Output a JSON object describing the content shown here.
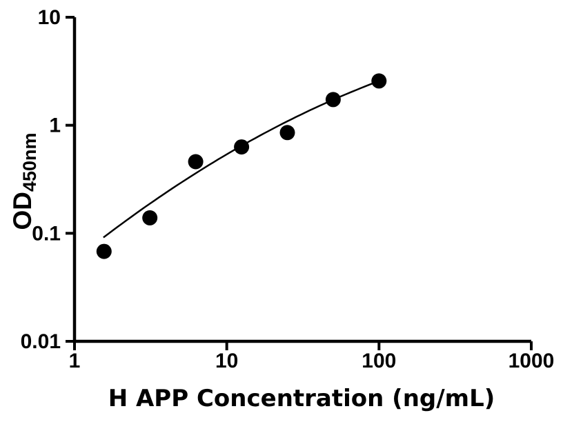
{
  "chart_data": {
    "type": "scatter",
    "title": "",
    "xlabel": "H APP Concentration (ng/mL)",
    "ylabel_main": "OD",
    "ylabel_sub": "450nm",
    "x_scale": "log",
    "y_scale": "log",
    "xlim": [
      1,
      1000
    ],
    "ylim": [
      0.01,
      10
    ],
    "x_ticks": {
      "values": [
        1,
        10,
        100,
        1000
      ],
      "labels": [
        "1",
        "10",
        "100",
        "1000"
      ]
    },
    "y_ticks": {
      "values": [
        0.01,
        0.1,
        1,
        10
      ],
      "labels": [
        "0.01",
        "0.1",
        "1",
        "10"
      ]
    },
    "grid": false,
    "legend": false,
    "series": [
      {
        "name": "standard-curve-points",
        "type": "scatter",
        "x": [
          1.5625,
          3.125,
          6.25,
          12.5,
          25,
          50,
          100
        ],
        "y": [
          0.068,
          0.139,
          0.46,
          0.63,
          0.855,
          1.73,
          2.57
        ]
      }
    ],
    "fit_curve": {
      "type": "quadratic-loglog",
      "description": "log10(y) = a + b*u + c*u^2, where u = log10(x)",
      "a": -1.2478,
      "b": 1.1289,
      "c": -0.1502,
      "u_min": 0.19,
      "u_max": 2.0
    },
    "colors": {
      "marker": "#000000",
      "curve": "#000000",
      "axis": "#000000",
      "text": "#000000",
      "background": "#ffffff"
    }
  }
}
